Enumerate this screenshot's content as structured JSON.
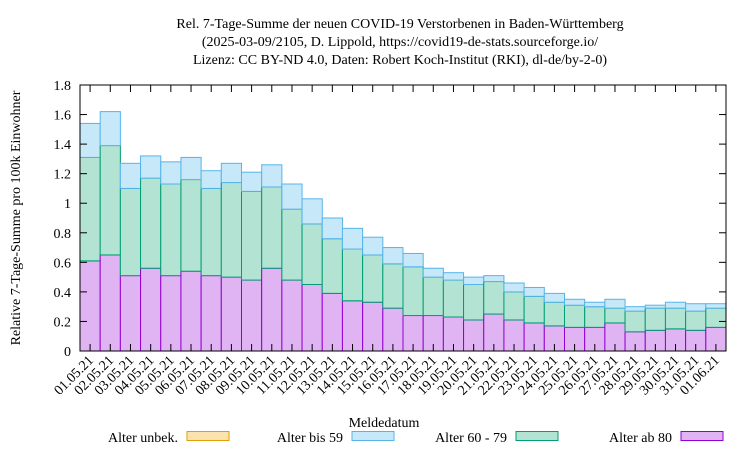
{
  "chart_data": {
    "type": "bar",
    "stacked": true,
    "title_lines": [
      "Rel. 7-Tage-Summe der neuen COVID-19 Verstorbenen in Baden-Württemberg",
      "(2025-03-09/2105, D. Lippold, https://covid19-de-stats.sourceforge.io/",
      "Lizenz: CC BY-ND 4.0, Daten: Robert Koch-Institut (RKI), dl-de/by-2-0)"
    ],
    "xlabel": "Meldedatum",
    "ylabel": "Relative 7-Tage-Summe pro 100k Einwohner",
    "ylim": [
      0,
      1.8
    ],
    "yticks": [
      "0",
      "0.2",
      "0.4",
      "0.6",
      "0.8",
      "1",
      "1.2",
      "1.4",
      "1.6",
      "1.8"
    ],
    "grid": false,
    "legend_position": "bottom",
    "categories": [
      "01.05.21",
      "02.05.21",
      "03.05.21",
      "04.05.21",
      "05.05.21",
      "06.05.21",
      "07.05.21",
      "08.05.21",
      "09.05.21",
      "10.05.21",
      "11.05.21",
      "12.05.21",
      "13.05.21",
      "14.05.21",
      "15.05.21",
      "16.05.21",
      "17.05.21",
      "18.05.21",
      "19.05.21",
      "20.05.21",
      "21.05.21",
      "22.05.21",
      "23.05.21",
      "24.05.21",
      "25.05.21",
      "26.05.21",
      "27.05.21",
      "28.05.21",
      "29.05.21",
      "30.05.21",
      "31.05.21",
      "01.06.21"
    ],
    "series": [
      {
        "name": "Alter ab 80",
        "fill": "#e0b3f2",
        "stroke": "#9400d3",
        "values": [
          0.61,
          0.65,
          0.51,
          0.56,
          0.51,
          0.54,
          0.51,
          0.5,
          0.48,
          0.56,
          0.48,
          0.45,
          0.39,
          0.34,
          0.33,
          0.29,
          0.24,
          0.24,
          0.23,
          0.21,
          0.25,
          0.21,
          0.19,
          0.17,
          0.16,
          0.16,
          0.19,
          0.13,
          0.14,
          0.15,
          0.14,
          0.16
        ]
      },
      {
        "name": "Alter 60 - 79",
        "fill": "#b3e3d3",
        "stroke": "#009e73",
        "values": [
          0.7,
          0.74,
          0.59,
          0.61,
          0.62,
          0.62,
          0.59,
          0.64,
          0.6,
          0.55,
          0.48,
          0.41,
          0.37,
          0.35,
          0.32,
          0.3,
          0.33,
          0.26,
          0.25,
          0.24,
          0.22,
          0.19,
          0.18,
          0.16,
          0.15,
          0.14,
          0.1,
          0.14,
          0.15,
          0.14,
          0.13,
          0.13
        ]
      },
      {
        "name": "Alter bis 59",
        "fill": "#c7e8f9",
        "stroke": "#56b4e9",
        "values": [
          0.23,
          0.23,
          0.17,
          0.15,
          0.15,
          0.15,
          0.12,
          0.13,
          0.13,
          0.15,
          0.17,
          0.17,
          0.14,
          0.14,
          0.12,
          0.11,
          0.09,
          0.06,
          0.05,
          0.05,
          0.04,
          0.06,
          0.06,
          0.06,
          0.04,
          0.03,
          0.06,
          0.03,
          0.02,
          0.04,
          0.05,
          0.03
        ]
      },
      {
        "name": "Alter unbek.",
        "fill": "#fbe3b0",
        "stroke": "#e69f00",
        "values": [
          0,
          0,
          0,
          0,
          0,
          0,
          0,
          0,
          0,
          0,
          0,
          0,
          0,
          0,
          0,
          0,
          0,
          0,
          0,
          0,
          0,
          0,
          0,
          0,
          0,
          0,
          0,
          0,
          0,
          0,
          0,
          0
        ]
      }
    ],
    "legend_order": [
      "Alter unbek.",
      "Alter bis 59",
      "Alter 60 - 79",
      "Alter ab 80"
    ]
  }
}
